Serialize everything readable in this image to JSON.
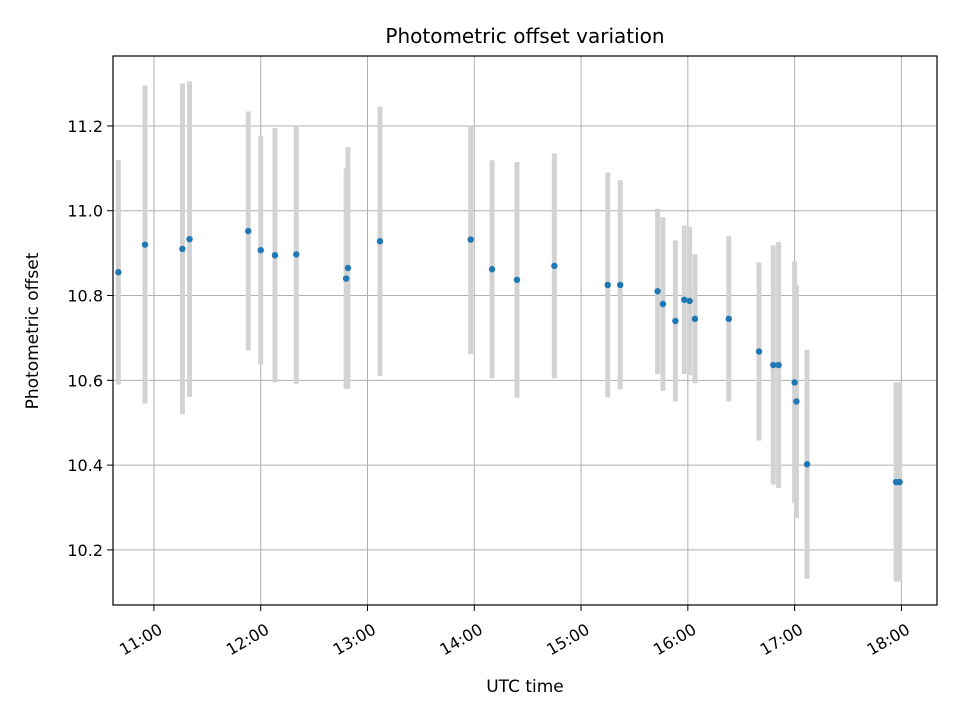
{
  "chart_data": {
    "type": "scatter",
    "title": "Photometric offset variation",
    "xlabel": "UTC time",
    "ylabel": "Photometric offset",
    "x_axis": "time",
    "xlim": [
      "10:37",
      "18:20"
    ],
    "ylim": [
      10.07,
      11.365
    ],
    "x_ticks": [
      "11:00",
      "12:00",
      "13:00",
      "14:00",
      "15:00",
      "16:00",
      "17:00",
      "18:00"
    ],
    "y_ticks": [
      10.2,
      10.4,
      10.6,
      10.8,
      11.0,
      11.2
    ],
    "grid": true,
    "colors": {
      "point": "#1f77b4",
      "errorbar": "#d3d3d3"
    },
    "series": [
      {
        "points": [
          {
            "x": "10:40",
            "y": 10.855,
            "err": 0.265
          },
          {
            "x": "10:55",
            "y": 10.92,
            "err": 0.375
          },
          {
            "x": "11:16",
            "y": 10.91,
            "err": 0.39
          },
          {
            "x": "11:20",
            "y": 10.933,
            "err": 0.372
          },
          {
            "x": "11:53",
            "y": 10.952,
            "err": 0.282
          },
          {
            "x": "12:00",
            "y": 10.907,
            "err": 0.27
          },
          {
            "x": "12:08",
            "y": 10.895,
            "err": 0.3
          },
          {
            "x": "12:20",
            "y": 10.897,
            "err": 0.305
          },
          {
            "x": "12:48",
            "y": 10.84,
            "err": 0.26
          },
          {
            "x": "12:49",
            "y": 10.865,
            "err": 0.285
          },
          {
            "x": "13:07",
            "y": 10.928,
            "err": 0.318
          },
          {
            "x": "13:58",
            "y": 10.932,
            "err": 0.27
          },
          {
            "x": "14:10",
            "y": 10.862,
            "err": 0.257
          },
          {
            "x": "14:24",
            "y": 10.837,
            "err": 0.278
          },
          {
            "x": "14:45",
            "y": 10.87,
            "err": 0.265
          },
          {
            "x": "15:15",
            "y": 10.825,
            "err": 0.265
          },
          {
            "x": "15:22",
            "y": 10.825,
            "err": 0.247
          },
          {
            "x": "15:43",
            "y": 10.81,
            "err": 0.195
          },
          {
            "x": "15:46",
            "y": 10.78,
            "err": 0.205
          },
          {
            "x": "15:53",
            "y": 10.74,
            "err": 0.19
          },
          {
            "x": "15:58",
            "y": 10.79,
            "err": 0.175
          },
          {
            "x": "16:01",
            "y": 10.787,
            "err": 0.175
          },
          {
            "x": "16:04",
            "y": 10.745,
            "err": 0.152
          },
          {
            "x": "16:23",
            "y": 10.745,
            "err": 0.195
          },
          {
            "x": "16:40",
            "y": 10.668,
            "err": 0.21
          },
          {
            "x": "16:48",
            "y": 10.636,
            "err": 0.282
          },
          {
            "x": "16:51",
            "y": 10.636,
            "err": 0.29
          },
          {
            "x": "17:00",
            "y": 10.595,
            "err": 0.285
          },
          {
            "x": "17:01",
            "y": 10.55,
            "err": 0.275
          },
          {
            "x": "17:07",
            "y": 10.402,
            "err": 0.27
          },
          {
            "x": "17:57",
            "y": 10.36,
            "err": 0.235
          },
          {
            "x": "17:59",
            "y": 10.36,
            "err": 0.235
          }
        ]
      }
    ]
  }
}
